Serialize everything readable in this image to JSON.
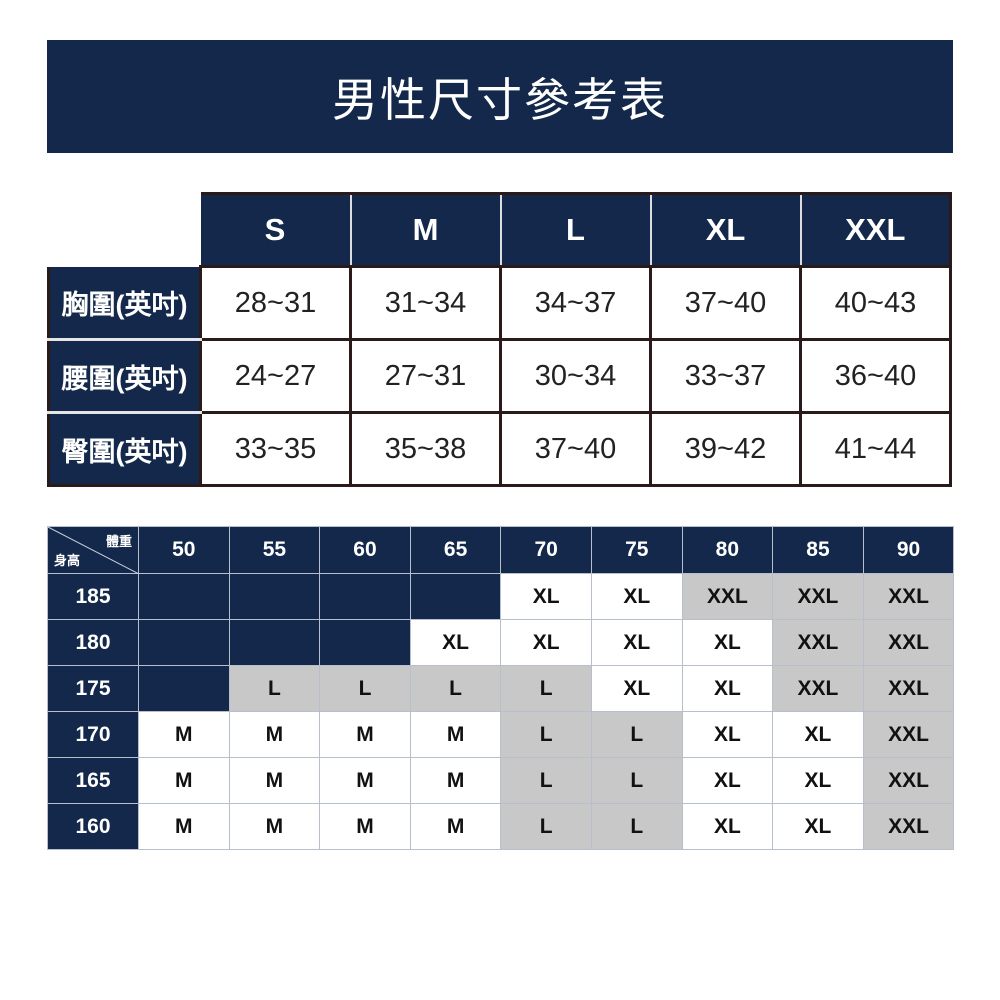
{
  "title": "男性尺寸參考表",
  "measurements": {
    "sizes": [
      "S",
      "M",
      "L",
      "XL",
      "XXL"
    ],
    "rows": [
      {
        "label": "胸圍(英吋)",
        "values": [
          "28~31",
          "31~34",
          "34~37",
          "37~40",
          "40~43"
        ]
      },
      {
        "label": "腰圍(英吋)",
        "values": [
          "24~27",
          "27~31",
          "30~34",
          "33~37",
          "36~40"
        ]
      },
      {
        "label": "臀圍(英吋)",
        "values": [
          "33~35",
          "35~38",
          "37~40",
          "39~42",
          "41~44"
        ]
      }
    ]
  },
  "matrix": {
    "corner_weight": "體重",
    "corner_height": "身高",
    "weights": [
      "50",
      "55",
      "60",
      "65",
      "70",
      "75",
      "80",
      "85",
      "90"
    ],
    "rows": [
      {
        "height": "185",
        "cells": [
          "",
          "",
          "",
          "",
          "XL",
          "XL",
          "XXL",
          "XXL",
          "XXL"
        ]
      },
      {
        "height": "180",
        "cells": [
          "",
          "",
          "",
          "XL",
          "XL",
          "XL",
          "XL",
          "XXL",
          "XXL"
        ]
      },
      {
        "height": "175",
        "cells": [
          "",
          "L",
          "L",
          "L",
          "L",
          "XL",
          "XL",
          "XXL",
          "XXL"
        ]
      },
      {
        "height": "170",
        "cells": [
          "M",
          "M",
          "M",
          "M",
          "L",
          "L",
          "XL",
          "XL",
          "XXL"
        ]
      },
      {
        "height": "165",
        "cells": [
          "M",
          "M",
          "M",
          "M",
          "L",
          "L",
          "XL",
          "XL",
          "XXL"
        ]
      },
      {
        "height": "160",
        "cells": [
          "M",
          "M",
          "M",
          "M",
          "L",
          "L",
          "XL",
          "XL",
          "XXL"
        ]
      }
    ]
  },
  "colors": {
    "navy": "#13284b",
    "gray": "#c8c8c8",
    "white": "#ffffff"
  }
}
